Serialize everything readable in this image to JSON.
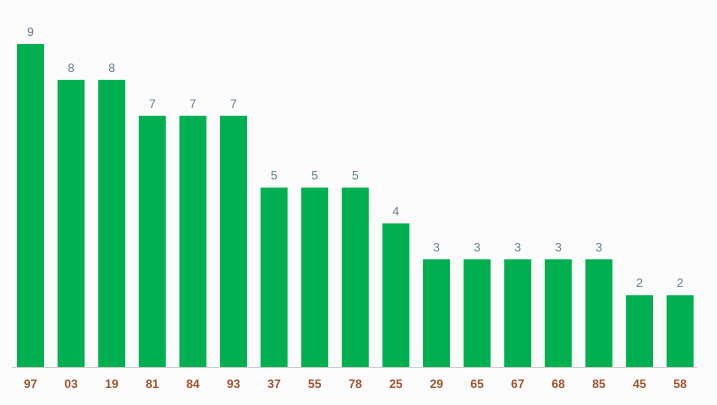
{
  "chart_data": {
    "type": "bar",
    "categories": [
      "97",
      "03",
      "19",
      "81",
      "84",
      "93",
      "37",
      "55",
      "78",
      "25",
      "29",
      "65",
      "67",
      "68",
      "85",
      "45",
      "58"
    ],
    "values": [
      9,
      8,
      8,
      7,
      7,
      7,
      5,
      5,
      5,
      4,
      3,
      3,
      3,
      3,
      3,
      2,
      2
    ],
    "title": "",
    "xlabel": "",
    "ylabel": "",
    "ylim": [
      0,
      9
    ],
    "grid": false,
    "legend": "none",
    "data_labels": true,
    "colors": {
      "bar": "#00b050",
      "value_label": "#5b7f8f",
      "tick_label": "#a0522d",
      "axis": "#cccccc",
      "background": "#fbfbfb"
    }
  }
}
